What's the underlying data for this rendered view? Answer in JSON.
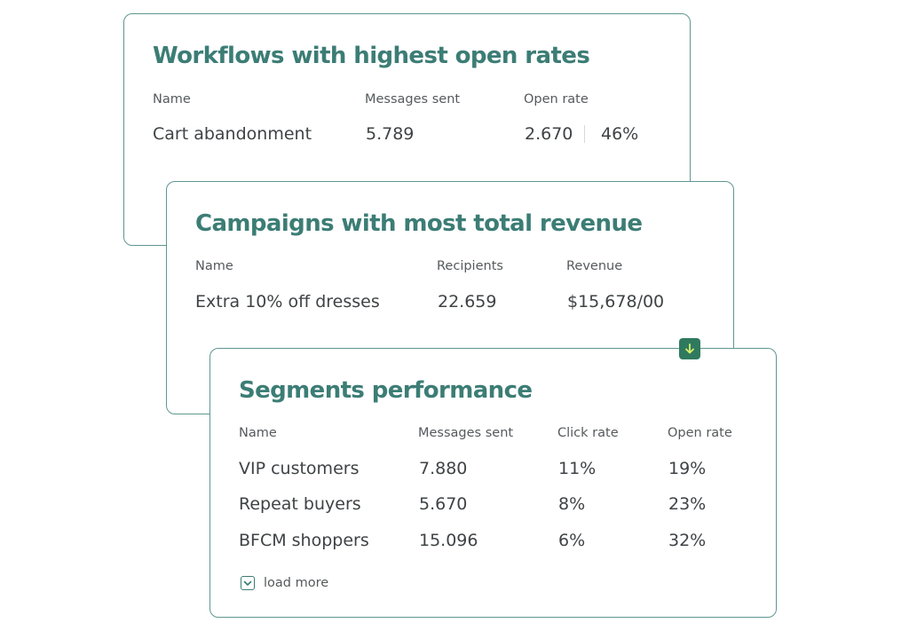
{
  "workflows": {
    "title": "Workflows with highest open rates",
    "columns": {
      "name": "Name",
      "messages_sent": "Messages sent",
      "open_rate": "Open rate"
    },
    "rows": [
      {
        "name": "Cart abandonment",
        "messages_sent": "5.789",
        "opens": "2.670",
        "open_rate": "46%"
      }
    ]
  },
  "campaigns": {
    "title": "Campaigns with most total revenue",
    "columns": {
      "name": "Name",
      "recipients": "Recipients",
      "revenue": "Revenue"
    },
    "rows": [
      {
        "name": "Extra 10% off dresses",
        "recipients": "22.659",
        "revenue": "$15,678/00"
      }
    ]
  },
  "segments": {
    "title": "Segments performance",
    "columns": {
      "name": "Name",
      "messages_sent": "Messages sent",
      "click_rate": "Click rate",
      "open_rate": "Open rate"
    },
    "rows": [
      {
        "name": "VIP customers",
        "messages_sent": "7.880",
        "click_rate": "11%",
        "open_rate": "19%"
      },
      {
        "name": "Repeat buyers",
        "messages_sent": "5.670",
        "click_rate": "8%",
        "open_rate": "23%"
      },
      {
        "name": "BFCM shoppers",
        "messages_sent": "15.096",
        "click_rate": "6%",
        "open_rate": "32%"
      }
    ],
    "load_more_label": "load more"
  },
  "icons": {
    "download": "arrow-down-icon",
    "load_more": "chevron-down-icon"
  },
  "colors": {
    "accent": "#3c7d75",
    "border": "#5f9690",
    "badge": "#2f7a5e",
    "badge_arrow": "#d8f06a",
    "text": "#3f4345",
    "muted": "#555a5c"
  }
}
